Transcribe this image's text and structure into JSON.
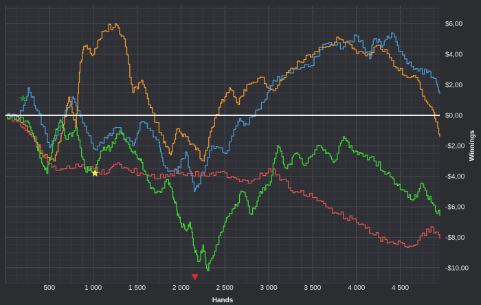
{
  "chart_data": {
    "type": "line",
    "xlabel": "Hands",
    "ylabel": "Winnings",
    "xlim": [
      0,
      4950
    ],
    "ylim": [
      -11,
      7.2
    ],
    "x_ticks": [
      500,
      1000,
      1500,
      2000,
      2500,
      3000,
      3500,
      4000,
      4500
    ],
    "x_tick_labels": [
      "500",
      "1 000",
      "1 500",
      "2 000",
      "2 500",
      "3 000",
      "3 500",
      "4 000",
      "4 500"
    ],
    "y_ticks": [
      6,
      4,
      2,
      0,
      -2,
      -4,
      -6,
      -8,
      -10
    ],
    "y_tick_labels": [
      "$6,00",
      "$4,00",
      "$2,00",
      "$0,00",
      "-$2,00",
      "-$4,00",
      "-$6,00",
      "-$8,00",
      "-$10,00"
    ],
    "y_axis_position": "right",
    "grid": true,
    "zero_line": true,
    "background": "#2b2d31",
    "series": [
      {
        "color": "#4a9ad8",
        "x": [
          0,
          150,
          260,
          360,
          500,
          600,
          760,
          850,
          1000,
          1150,
          1250,
          1450,
          1550,
          1750,
          1800,
          1950,
          2050,
          2150,
          2200,
          2350,
          2500,
          2650,
          2750,
          2950,
          3050,
          3200,
          3450,
          3650,
          3850,
          4000,
          4150,
          4200,
          4300,
          4400,
          4500,
          4650,
          4800,
          4900,
          4950
        ],
        "y": [
          0,
          -0.2,
          1.8,
          0.3,
          -2.1,
          -1.0,
          1.2,
          -0.1,
          -2.2,
          -1.5,
          -0.8,
          -2.0,
          -0.4,
          -1.8,
          -3.3,
          -3.8,
          -2.4,
          -5.0,
          -4.5,
          -2.0,
          -2.5,
          -0.4,
          -0.6,
          1.0,
          2.3,
          2.8,
          3.2,
          4.7,
          4.5,
          5.2,
          3.7,
          5.0,
          4.6,
          5.4,
          4.2,
          3.0,
          2.8,
          2.4,
          1.4
        ]
      },
      {
        "color": "#f0982e",
        "x": [
          0,
          150,
          300,
          400,
          550,
          650,
          720,
          800,
          850,
          900,
          1000,
          1100,
          1250,
          1350,
          1450,
          1550,
          1650,
          1800,
          1880,
          1950,
          2050,
          2150,
          2250,
          2350,
          2450,
          2550,
          2650,
          2750,
          2900,
          3050,
          3200,
          3350,
          3500,
          3650,
          3800,
          3950,
          4100,
          4250,
          4400,
          4550,
          4700,
          4780,
          4880,
          4950
        ],
        "y": [
          0,
          -0.3,
          -1.2,
          -2.5,
          -3.0,
          -1.0,
          1.2,
          -0.8,
          3.5,
          4.5,
          4.0,
          5.5,
          6.0,
          5.0,
          1.5,
          2.3,
          0.5,
          -1.8,
          -2.6,
          -0.9,
          -1.4,
          -2.0,
          -3.0,
          -0.8,
          0.8,
          1.8,
          0.7,
          2.0,
          2.5,
          1.6,
          2.8,
          3.5,
          4.0,
          4.5,
          5.0,
          4.4,
          3.9,
          4.6,
          3.6,
          2.6,
          2.3,
          1.0,
          0.2,
          -1.4
        ]
      },
      {
        "color": "#e05252",
        "x": [
          0,
          150,
          300,
          450,
          600,
          800,
          1000,
          1150,
          1250,
          1400,
          1600,
          1800,
          1950,
          2100,
          2300,
          2450,
          2600,
          2800,
          3000,
          3150,
          3300,
          3500,
          3650,
          3800,
          3950,
          4100,
          4250,
          4400,
          4550,
          4700,
          4850,
          4950
        ],
        "y": [
          0,
          -0.4,
          -1.4,
          -2.8,
          -3.6,
          -3.2,
          -3.5,
          -3.8,
          -3.2,
          -3.6,
          -3.9,
          -4.1,
          -3.6,
          -3.8,
          -4.0,
          -3.7,
          -4.1,
          -4.3,
          -3.5,
          -4.2,
          -5.0,
          -5.4,
          -6.0,
          -6.5,
          -6.8,
          -7.4,
          -8.0,
          -8.3,
          -8.6,
          -8.2,
          -7.3,
          -8.1
        ]
      },
      {
        "color": "#3ed635",
        "x": [
          0,
          150,
          260,
          350,
          400,
          470,
          550,
          620,
          700,
          800,
          900,
          1000,
          1100,
          1200,
          1300,
          1400,
          1500,
          1550,
          1650,
          1750,
          1850,
          1900,
          1950,
          2000,
          2050,
          2100,
          2150,
          2200,
          2250,
          2300,
          2400,
          2500,
          2600,
          2700,
          2800,
          2900,
          3000,
          3100,
          3200,
          3300,
          3400,
          3550,
          3650,
          3750,
          3850,
          3950,
          4050,
          4200,
          4350,
          4450,
          4550,
          4650,
          4750,
          4850,
          4950
        ],
        "y": [
          0,
          -0.2,
          -0.5,
          -1.8,
          -2.8,
          -3.8,
          -1.5,
          -0.3,
          -1.6,
          -0.8,
          -3.5,
          -3.7,
          -2.3,
          -2.1,
          -1.0,
          -1.9,
          -2.8,
          -3.1,
          -4.8,
          -5.0,
          -4.2,
          -5.0,
          -6.2,
          -7.1,
          -7.5,
          -7.0,
          -8.7,
          -9.6,
          -8.5,
          -10.2,
          -8.5,
          -7.0,
          -6.1,
          -5.0,
          -6.5,
          -5.0,
          -4.6,
          -2.0,
          -3.5,
          -2.5,
          -3.3,
          -2.0,
          -2.5,
          -3.0,
          -1.4,
          -2.3,
          -2.5,
          -3.0,
          -3.8,
          -4.5,
          -5.0,
          -5.5,
          -4.5,
          -5.7,
          -6.6
        ]
      }
    ],
    "markers": [
      {
        "shape": "star",
        "color": "#1f8a2a",
        "x": 200,
        "y": 1.1
      },
      {
        "shape": "star",
        "color": "#f2e84a",
        "x": 1020,
        "y": -3.8
      },
      {
        "shape": "triangle-down",
        "color": "#e02a2a",
        "x": 2160,
        "y": -10.6
      }
    ]
  }
}
